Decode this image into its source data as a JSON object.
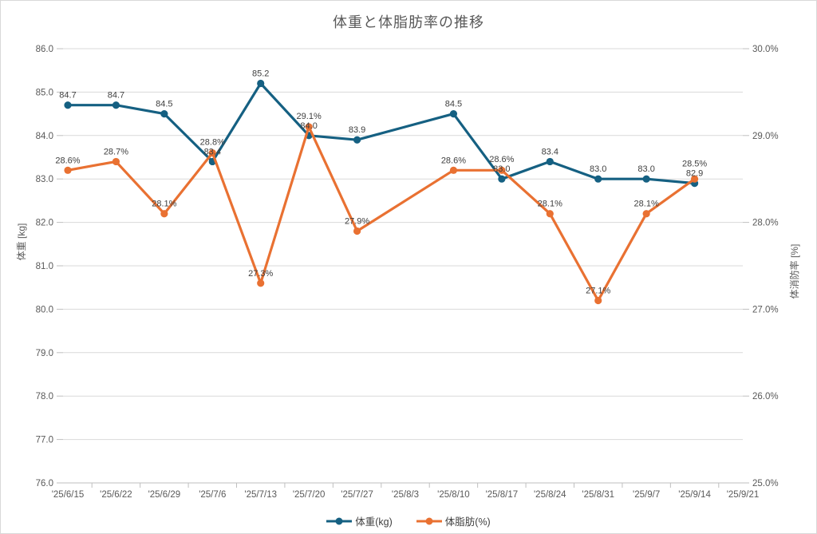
{
  "chart_data": {
    "type": "line",
    "title": "体重と体脂肪率の推移",
    "categories": [
      "'25/6/15",
      "'25/6/22",
      "'25/6/29",
      "'25/7/6",
      "'25/7/13",
      "'25/7/20",
      "'25/7/27",
      "'25/8/3",
      "'25/8/10",
      "'25/8/17",
      "'25/8/24",
      "'25/8/31",
      "'25/9/7",
      "'25/9/14",
      "'25/9/21"
    ],
    "series": [
      {
        "name": "体重(kg)",
        "color": "#156082",
        "axis": "left",
        "values": [
          84.7,
          84.7,
          84.5,
          83.4,
          85.2,
          84.0,
          83.9,
          null,
          84.5,
          83.0,
          83.4,
          83.0,
          83.0,
          82.9,
          null
        ],
        "labels": [
          "84.7",
          "84.7",
          "84.5",
          "83.4",
          "85.2",
          "84.0",
          "83.9",
          "",
          "84.5",
          "83.0",
          "83.4",
          "83.0",
          "83.0",
          "82.9",
          ""
        ]
      },
      {
        "name": "体脂肪(%)",
        "color": "#E97132",
        "axis": "right",
        "values": [
          28.6,
          28.7,
          28.1,
          28.8,
          27.3,
          29.1,
          27.9,
          null,
          28.6,
          28.6,
          28.1,
          27.1,
          28.1,
          28.5,
          null
        ],
        "labels": [
          "28.6%",
          "28.7%",
          "28.1%",
          "28.8%",
          "27.3%",
          "29.1%",
          "27.9%",
          "",
          "28.6%",
          "28.6%",
          "28.1%",
          "27.1%",
          "28.1%",
          "28.5%",
          ""
        ]
      }
    ],
    "left_axis": {
      "title": "体重 [kg]",
      "min": 76,
      "max": 86,
      "step": 1,
      "tick_labels": [
        "86.0",
        "85.0",
        "84.0",
        "83.0",
        "82.0",
        "81.0",
        "80.0",
        "79.0",
        "78.0",
        "77.0",
        "76.0"
      ]
    },
    "right_axis": {
      "title": "体消防率 [%]",
      "min": 25,
      "max": 30,
      "step": 1,
      "tick_labels": [
        "30.0%",
        "29.0%",
        "28.0%",
        "27.0%",
        "26.0%",
        "25.0%"
      ]
    },
    "grid": true,
    "legend_position": "bottom",
    "colors": {
      "grid": "#D9D9D9",
      "axis": "#BFBFBF",
      "tick_text": "#595959",
      "label_text": "#404040",
      "title_text": "#595959",
      "background": "#FFFFFF"
    }
  }
}
